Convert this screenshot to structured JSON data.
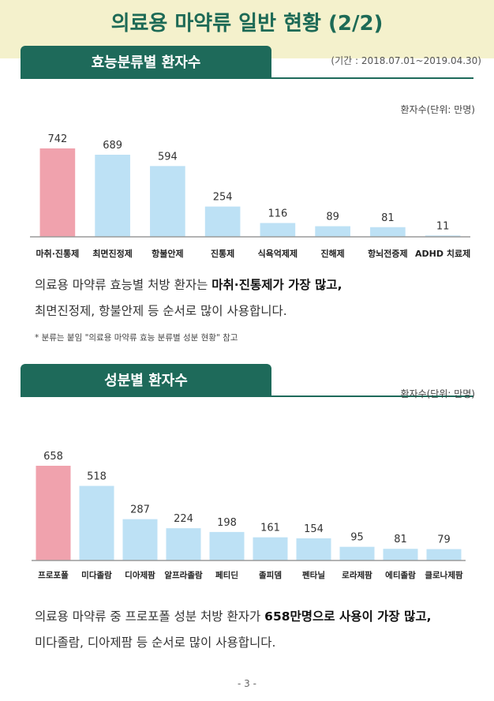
{
  "main_title": "의료용 마약류 일반 현황 (2/2)",
  "section1": {
    "tab_label": "효능분류별 환자수",
    "period": "(기간 : 2018.07.01~2019.04.30)",
    "unit": "환자수(단위: 만명)",
    "summary_line1_plain": "의료용 마약류 효능별 처방 환자는 ",
    "summary_line1_bold": "마취·진통제가 가장 많고,",
    "summary_line2": "최면진정제, 항불안제 등 순서로 많이 사용합니다.",
    "note": "* 분류는 붙임 \"의료용 마약류 효능 분류별 성분 현황\" 참고"
  },
  "section2": {
    "tab_label": "성분별 환자수",
    "unit": "환자수(단위: 만명)",
    "summary_line1_plain": "의료용 마약류 중 프로포폴 성분 처방 환자가 ",
    "summary_line1_bold": "658만명으로 사용이 가장 많고,",
    "summary_line2": "미다졸람, 디아제팜 등 순서로 많이 사용합니다."
  },
  "page_number": "- 3 -",
  "colors": {
    "highlight_bar": "#f0a2ad",
    "bar": "#bde1f5",
    "accent": "#1e6a5a",
    "band": "#f4f1cc"
  },
  "chart_data": [
    {
      "type": "bar",
      "title": "효능분류별 환자수",
      "ylabel": "환자수(단위: 만명)",
      "categories": [
        "마취·진통제",
        "최면진정제",
        "항불안제",
        "진통제",
        "식욕억제제",
        "진해제",
        "항뇌전증제",
        "ADHD 치료제"
      ],
      "values": [
        742,
        689,
        594,
        254,
        116,
        89,
        81,
        11
      ],
      "highlight_index": 0
    },
    {
      "type": "bar",
      "title": "성분별 환자수",
      "ylabel": "환자수(단위: 만명)",
      "categories": [
        "프로포폴",
        "미다졸람",
        "디아제팜",
        "알프라졸람",
        "페티딘",
        "졸피뎀",
        "펜타닐",
        "로라제팜",
        "에티졸람",
        "클로나제팜"
      ],
      "values": [
        658,
        518,
        287,
        224,
        198,
        161,
        154,
        95,
        81,
        79
      ],
      "highlight_index": 0
    }
  ]
}
